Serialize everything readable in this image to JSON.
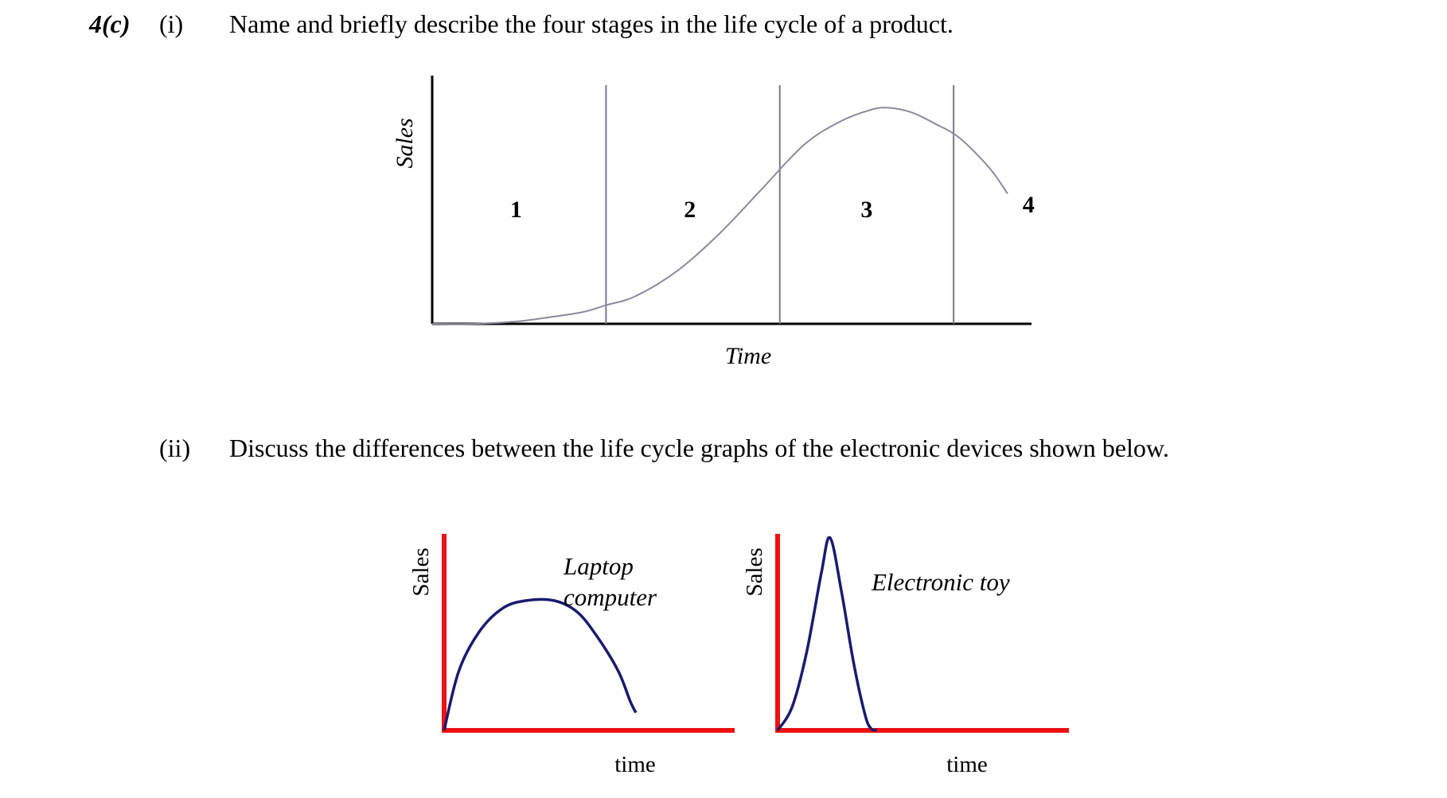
{
  "question": {
    "number": "4(c)",
    "part_i": {
      "label": "(i)",
      "text": "Name and briefly describe the four stages in the life cycle of a product."
    },
    "part_ii": {
      "label": "(ii)",
      "text": "Discuss the differences between the life cycle graphs of the electronic devices shown below."
    }
  },
  "chart_data": [
    {
      "type": "line",
      "title": "",
      "xlabel": "Time",
      "ylabel": "Sales",
      "stage_labels": [
        "1",
        "2",
        "3",
        "4"
      ],
      "stage_boundaries_x": [
        0.29,
        0.58,
        0.87
      ],
      "xlim": [
        0,
        1
      ],
      "ylim": [
        0,
        1
      ],
      "x": [
        0.0,
        0.07,
        0.14,
        0.2,
        0.25,
        0.29,
        0.34,
        0.41,
        0.48,
        0.55,
        0.62,
        0.68,
        0.73,
        0.76,
        0.8,
        0.84,
        0.88,
        0.93,
        0.96
      ],
      "y": [
        0.0,
        0.0,
        0.01,
        0.03,
        0.05,
        0.08,
        0.12,
        0.23,
        0.39,
        0.58,
        0.77,
        0.87,
        0.92,
        0.93,
        0.91,
        0.86,
        0.8,
        0.67,
        0.56
      ],
      "line_color": "#8a8a9a",
      "axis_color": "#000000",
      "grid": false
    },
    {
      "type": "line",
      "title": "",
      "series_label": "Laptop computer",
      "series_label_lines": [
        "Laptop",
        "computer"
      ],
      "xlabel": "time",
      "ylabel": "Sales",
      "xlim": [
        0,
        1
      ],
      "ylim": [
        0,
        1
      ],
      "x": [
        0.0,
        0.05,
        0.12,
        0.2,
        0.28,
        0.38,
        0.46,
        0.53,
        0.6,
        0.64,
        0.66
      ],
      "y": [
        0.0,
        0.3,
        0.5,
        0.62,
        0.66,
        0.66,
        0.6,
        0.47,
        0.3,
        0.15,
        0.09
      ],
      "line_color": "#1a1a6e",
      "axis_color": "#ee1111",
      "grid": false
    },
    {
      "type": "line",
      "title": "",
      "series_label": "Electronic toy",
      "xlabel": "time",
      "ylabel": "Sales",
      "xlim": [
        0,
        1
      ],
      "ylim": [
        0,
        1
      ],
      "x": [
        0.0,
        0.05,
        0.1,
        0.15,
        0.18,
        0.22,
        0.26,
        0.3,
        0.32,
        0.34
      ],
      "y": [
        0.0,
        0.12,
        0.4,
        0.8,
        0.98,
        0.7,
        0.35,
        0.08,
        0.01,
        0.0
      ],
      "line_color": "#1a1a6e",
      "axis_color": "#ee1111",
      "grid": false
    }
  ]
}
